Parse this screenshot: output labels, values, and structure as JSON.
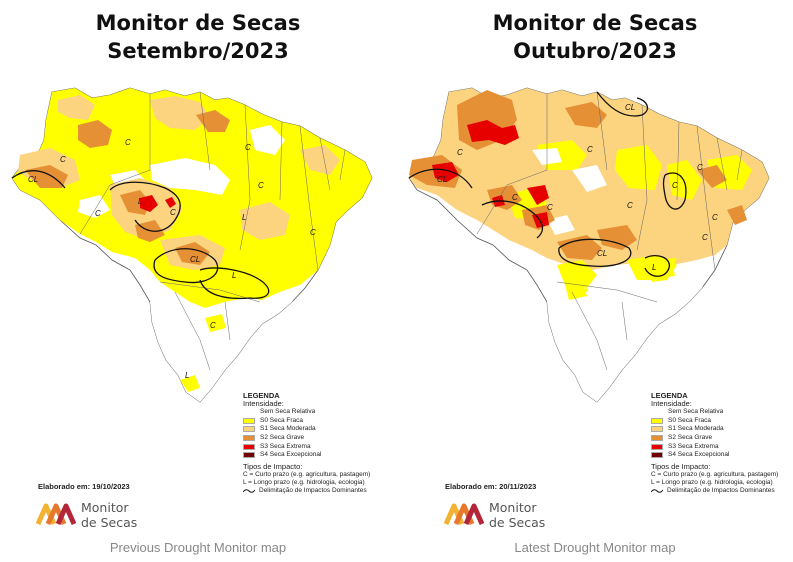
{
  "maps": [
    {
      "title_line1": "Monitor de Secas",
      "title_line2": "Setembro/2023",
      "elaborated": "Elaborado em: 19/10/2023",
      "caption": "Previous Drought Monitor map",
      "region_labels": [
        "C",
        "C",
        "C",
        "C",
        "CL",
        "CL",
        "L",
        "L",
        "C",
        "C",
        "C",
        "C",
        "L",
        "L"
      ]
    },
    {
      "title_line1": "Monitor de Secas",
      "title_line2": "Outubro/2023",
      "elaborated": "Elaborado em: 20/11/2023",
      "caption": "Latest Drought Monitor map",
      "region_labels": [
        "CL",
        "C",
        "C",
        "C",
        "C",
        "CL",
        "CL",
        "L",
        "C",
        "C",
        "C",
        "C",
        "C"
      ]
    }
  ],
  "legend": {
    "title": "LEGENDA",
    "subtitle": "Intensidade:",
    "items": [
      {
        "label": "Sem Seca Relativa",
        "color": "#ffffff"
      },
      {
        "label": "S0 Seca Fraca",
        "color": "#ffff00"
      },
      {
        "label": "S1 Seca Moderada",
        "color": "#fcd37f"
      },
      {
        "label": "S2 Seca Grave",
        "color": "#e69036"
      },
      {
        "label": "S3 Seca Extrema",
        "color": "#e60000"
      },
      {
        "label": "S4 Seca Excepcional",
        "color": "#730000"
      }
    ],
    "impact_title": "Tipos de Impacto:",
    "impact_c": "C = Curto prazo (e.g. agricultura, pastagem)",
    "impact_l": "L = Longo prazo (e.g. hidrologia, ecologia)",
    "impact_line": "Delimitação de Impactos Dominantes"
  },
  "logo": {
    "line1": "Monitor",
    "line2": "de Secas"
  },
  "colors": {
    "s0": "#ffff00",
    "s1": "#fcd37f",
    "s2": "#e69036",
    "s3": "#e60000",
    "s4": "#730000",
    "none": "#ffffff",
    "border": "#555555"
  }
}
